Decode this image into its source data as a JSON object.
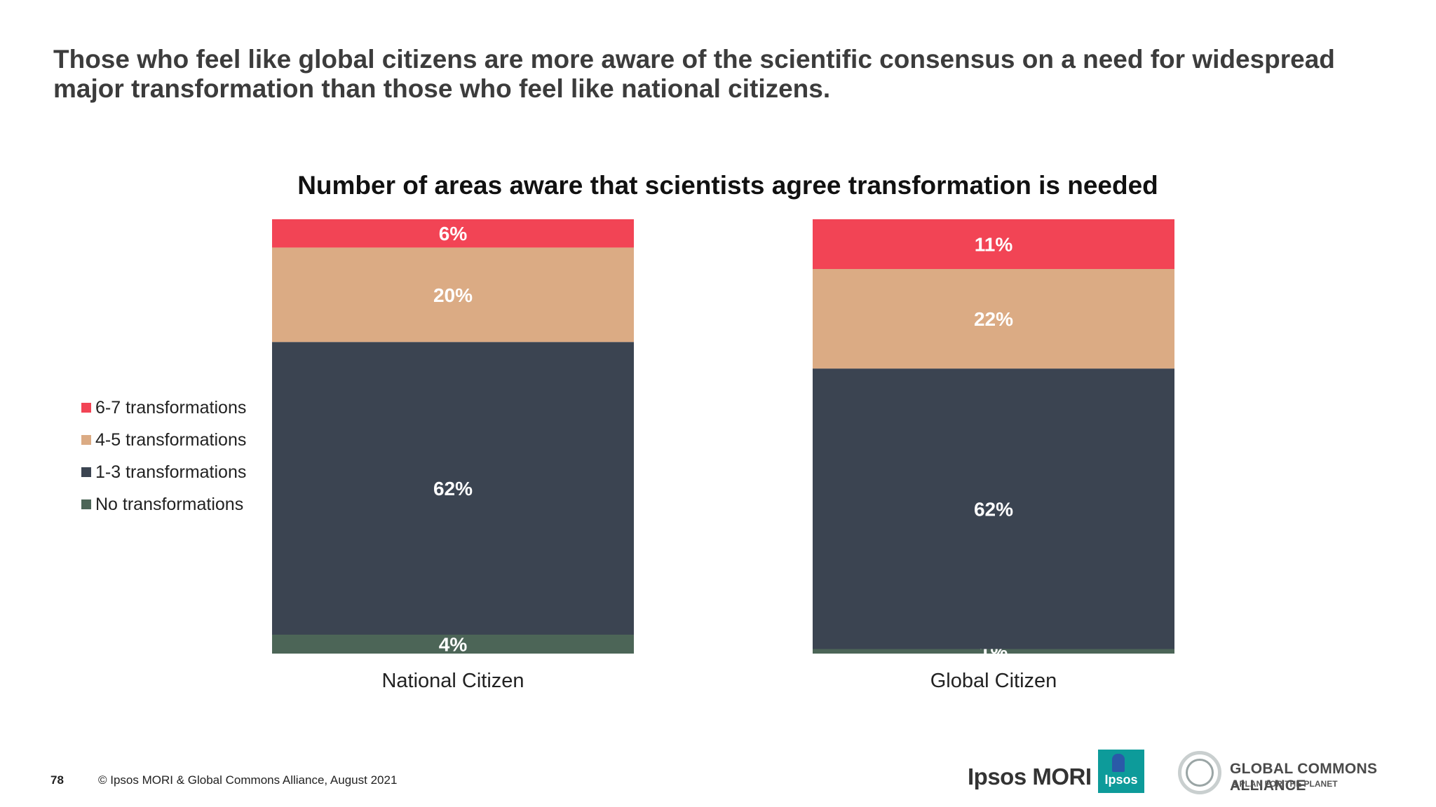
{
  "headline": "Those who feel like global citizens are more aware of the scientific consensus on a need for widespread major transformation than those who feel like national citizens.",
  "footer": {
    "page_number": "78",
    "copyright": "© Ipsos MORI & Global Commons Alliance, August 2021"
  },
  "logos": {
    "ipsos_mori": "Ipsos MORI",
    "ipsos": "Ipsos",
    "gca_name": "GLOBAL COMMONS ALLIANCE",
    "gca_tagline": "A PLAN FOR THE PLANET"
  },
  "chart_data": {
    "type": "bar",
    "stacked": true,
    "title": "Number of areas aware that scientists agree transformation is needed",
    "categories": [
      "National Citizen",
      "Global Citizen"
    ],
    "series": [
      {
        "name": "No transformations",
        "values": [
          4,
          1
        ],
        "color": "#4c6557"
      },
      {
        "name": "1-3 transformations",
        "values": [
          62,
          62
        ],
        "color": "#3b4451"
      },
      {
        "name": "4-5 transformations",
        "values": [
          20,
          22
        ],
        "color": "#dbab84"
      },
      {
        "name": "6-7 transformations",
        "values": [
          6,
          11
        ],
        "color": "#f24455"
      }
    ],
    "legend_order": [
      "6-7 transformations",
      "4-5 transformations",
      "1-3 transformations",
      "No transformations"
    ],
    "legend_position": "left",
    "value_suffix": "%",
    "grid": false
  }
}
